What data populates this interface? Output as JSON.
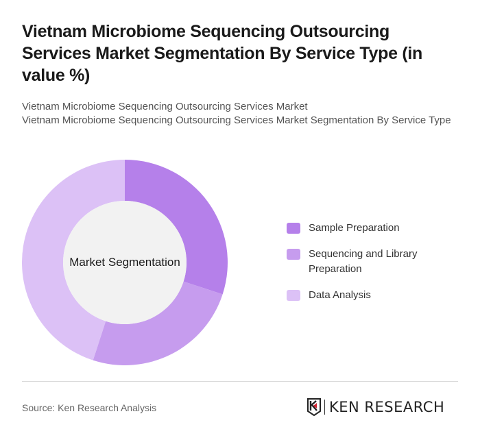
{
  "header": {
    "title": "Vietnam Microbiome Sequencing Outsourcing Services Market Segmentation By Service Type (in value %)",
    "subtitle_line1": "Vietnam Microbiome Sequencing Outsourcing Services Market",
    "subtitle_line2": "Vietnam Microbiome Sequencing Outsourcing Services Market Segmentation By Service Type"
  },
  "chart": {
    "center_label": "Market Segmentation"
  },
  "legend": [
    {
      "label": "Sample Preparation",
      "color": "#b580ea"
    },
    {
      "label": "Sequencing and Library Preparation",
      "color": "#c69cee"
    },
    {
      "label": "Data Analysis",
      "color": "#dcc1f6"
    }
  ],
  "footer": {
    "source": "Source: Ken Research Analysis",
    "logo_text": "KEN RESEARCH"
  },
  "chart_data": {
    "type": "pie",
    "subtype": "donut",
    "title": "Vietnam Microbiome Sequencing Outsourcing Services Market Segmentation By Service Type (in value %)",
    "center_label": "Market Segmentation",
    "categories": [
      "Sample Preparation",
      "Sequencing and Library Preparation",
      "Data Analysis"
    ],
    "values": [
      30,
      25,
      45
    ],
    "colors": [
      "#b580ea",
      "#c69cee",
      "#dcc1f6"
    ],
    "unit": "%",
    "legend_position": "right",
    "start_angle": "12 o'clock, clockwise"
  }
}
